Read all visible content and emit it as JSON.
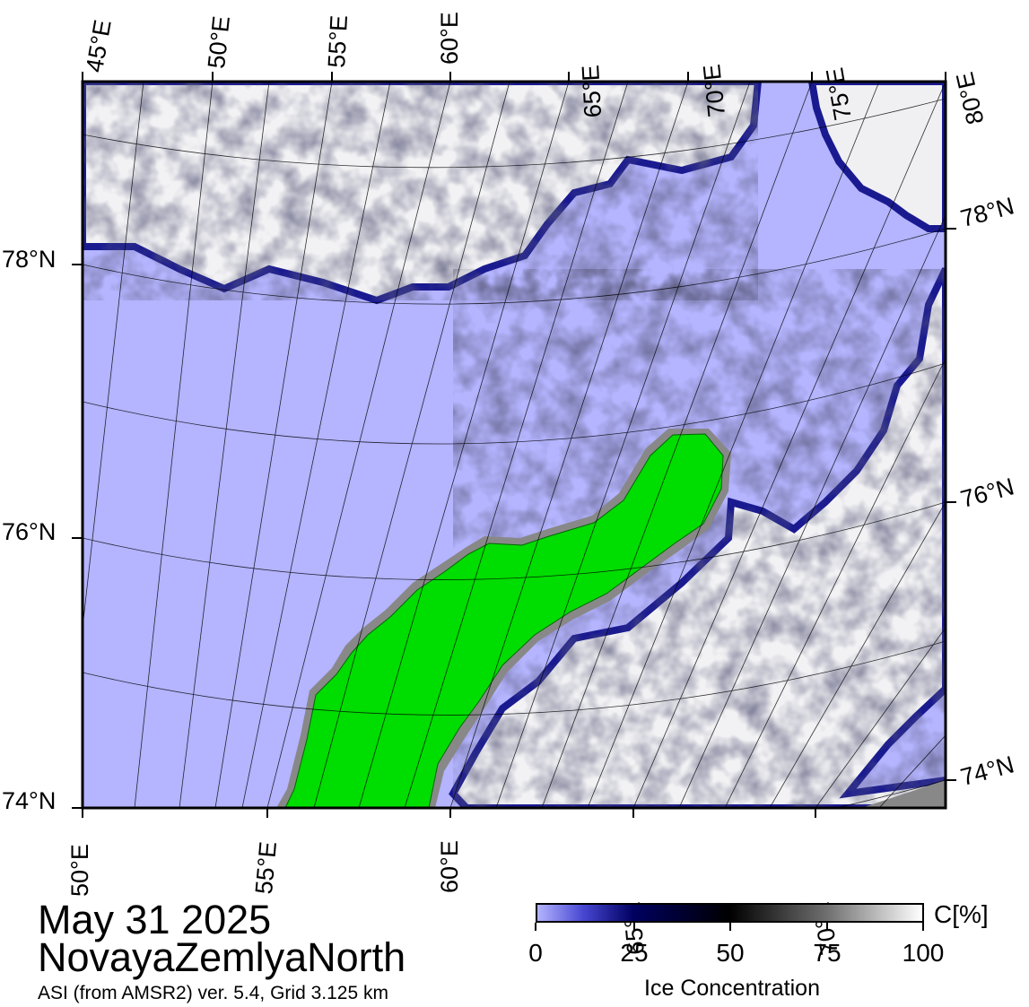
{
  "map": {
    "top_lon_labels": [
      "45°E",
      "50°E",
      "55°E",
      "60°E",
      "65°E",
      "70°E",
      "75°E",
      "80°E"
    ],
    "bottom_lon_labels": [
      "50°E",
      "55°E",
      "60°E",
      "65°E",
      "70°E"
    ],
    "left_lat_labels": [
      "78°N",
      "76°N",
      "74°N"
    ],
    "right_lat_labels": [
      "78°N",
      "76°N",
      "74°N"
    ],
    "colors": {
      "open_water": "#b4b4ff",
      "land": "#00dd00",
      "land_edge": "#888888",
      "high_ice": "#ffffff",
      "ice_edge": "#000080"
    }
  },
  "title": {
    "date": "May 31 2025",
    "region": "NovayaZemlyaNorth"
  },
  "subtitle": "ASI (from AMSR2) ver. 5.4,  Grid 3.125 km",
  "colorbar": {
    "ticks": [
      "0",
      "25",
      "50",
      "75",
      "100"
    ],
    "unit": "C[%]",
    "label": "Ice Concentration"
  }
}
